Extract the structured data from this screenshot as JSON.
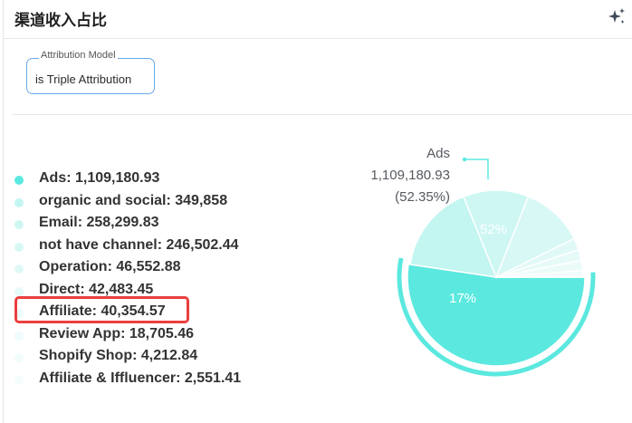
{
  "header": {
    "title": "渠道收入占比",
    "ai_icon": "sparkle-icon"
  },
  "filter": {
    "label": "Attribution Model",
    "value": "is  Triple Attribution"
  },
  "colors": {
    "accent": "#5be8df",
    "highlight": "#ea3f3f",
    "filter_border": "#6aa9e9"
  },
  "legend": [
    {
      "label": "Ads: 1,109,180.93",
      "color": "#5be8df"
    },
    {
      "label": "organic and social: 349,858",
      "color": "#c3f5f1"
    },
    {
      "label": "Email: 258,299.83",
      "color": "#cef7f3"
    },
    {
      "label": "not have channel: 246,502.44",
      "color": "#d8f8f5"
    },
    {
      "label": "Operation: 46,552.88",
      "color": "#e0f9f7"
    },
    {
      "label": "Direct: 42,483.45",
      "color": "#e6faf8"
    },
    {
      "label": "Affiliate: 40,354.57",
      "color": "#ebfbfa"
    },
    {
      "label": "Review App: 18,705.46",
      "color": "#eefcfb"
    },
    {
      "label": "Shopify Shop: 4,212.84",
      "color": "#f1fcfc"
    },
    {
      "label": "Affiliate & Iffluencer: 2,551.41",
      "color": "#f3fdfd"
    }
  ],
  "chart_data": {
    "type": "pie",
    "title": "",
    "slices": [
      {
        "name": "Ads",
        "value": 1109180.93,
        "color": "#5be8df"
      },
      {
        "name": "organic and social",
        "value": 349858,
        "color": "#c3f5f1"
      },
      {
        "name": "Email",
        "value": 258299.83,
        "color": "#cef7f3"
      },
      {
        "name": "not have channel",
        "value": 246502.44,
        "color": "#d8f8f5"
      },
      {
        "name": "Operation",
        "value": 46552.88,
        "color": "#e0f9f7"
      },
      {
        "name": "Direct",
        "value": 42483.45,
        "color": "#e6faf8"
      },
      {
        "name": "Affiliate",
        "value": 40354.57,
        "color": "#ebfbfa"
      },
      {
        "name": "Review App",
        "value": 18705.46,
        "color": "#eefcfb"
      },
      {
        "name": "Shopify Shop",
        "value": 4212.84,
        "color": "#f1fcfc"
      },
      {
        "name": "Affiliate & Iffluencer",
        "value": 2551.41,
        "color": "#f3fdfd"
      }
    ],
    "slice_labels": [
      {
        "index": 0,
        "text": "52%"
      },
      {
        "index": 1,
        "text": "17%"
      }
    ],
    "callout": {
      "name": "Ads",
      "value": "1,109,180.93",
      "percent": "(52.35%)"
    },
    "highlighted_slice": "Ads"
  }
}
